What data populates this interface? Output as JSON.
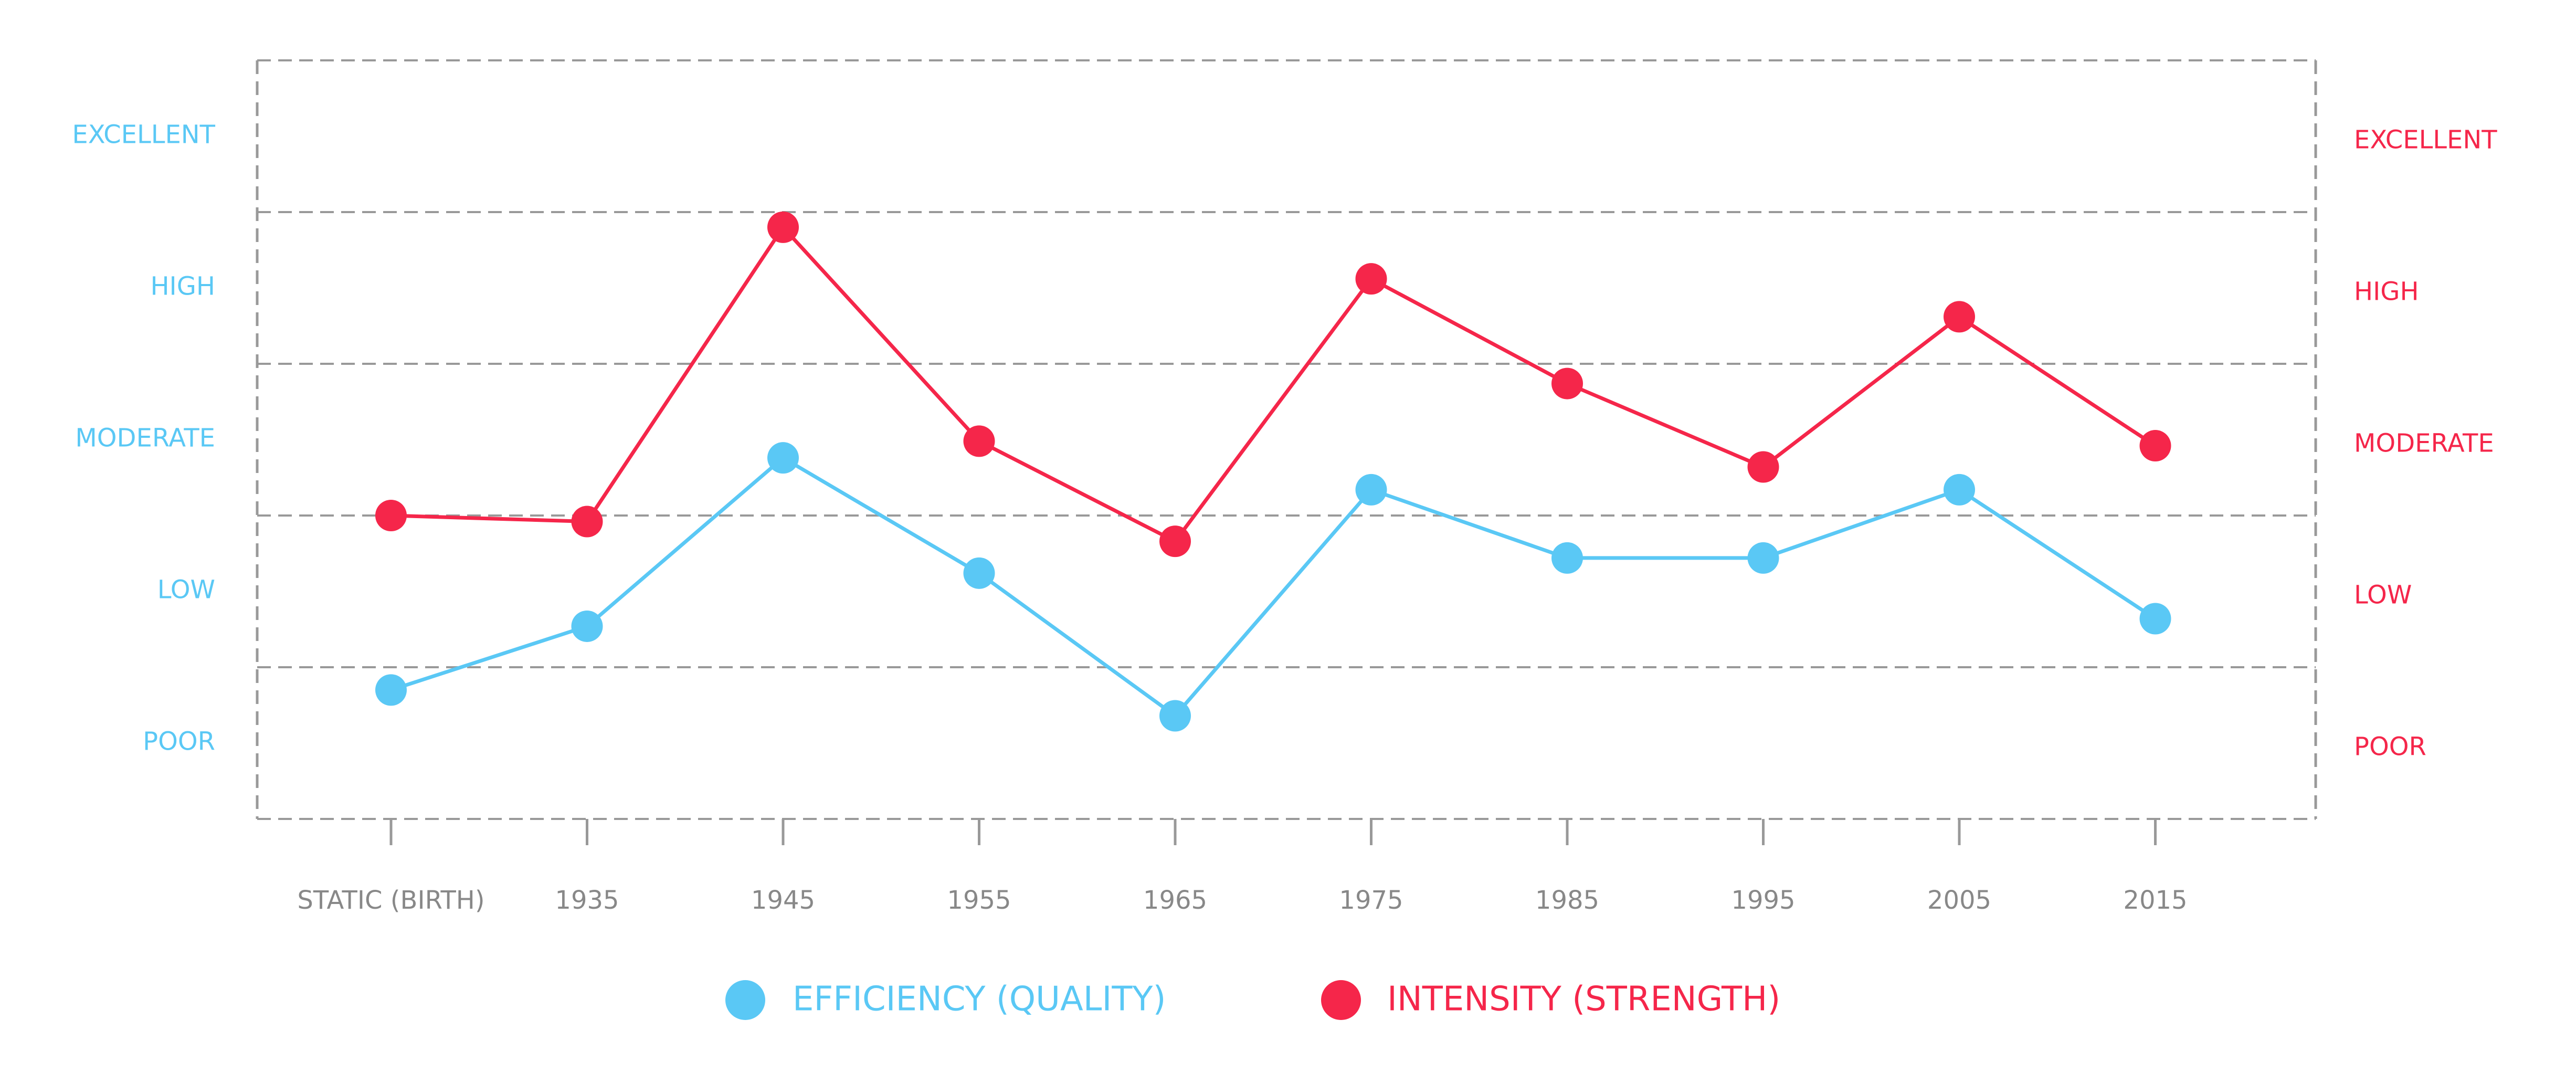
{
  "chart_data": {
    "type": "line",
    "categories": [
      "STATIC (BIRTH)",
      "1935",
      "1945",
      "1955",
      "1965",
      "1975",
      "1985",
      "1995",
      "2005",
      "2015"
    ],
    "left_axis_labels": [
      "POOR",
      "LOW",
      "MODERATE",
      "HIGH",
      "EXCELLENT"
    ],
    "right_axis_labels": [
      "POOR",
      "LOW",
      "MODERATE",
      "HIGH",
      "EXCELLENT"
    ],
    "ylim": [
      0,
      5
    ],
    "grid": true,
    "legend_position": "bottom",
    "series": [
      {
        "name": "EFFICIENCY (QUALITY)",
        "color": "#5AC8F5",
        "values": [
          0.85,
          1.27,
          2.38,
          1.62,
          0.68,
          2.17,
          1.72,
          1.72,
          2.17,
          1.32
        ]
      },
      {
        "name": "INTENSITY (STRENGTH)",
        "color": "#F5264A",
        "values": [
          2.0,
          1.96,
          3.9,
          2.49,
          1.83,
          3.56,
          2.87,
          2.32,
          3.31,
          2.46
        ]
      }
    ],
    "colors": {
      "left_axis_text": "#5AC8F5",
      "right_axis_text": "#F5264A",
      "frame": "#999999",
      "category_text": "#888888"
    }
  }
}
